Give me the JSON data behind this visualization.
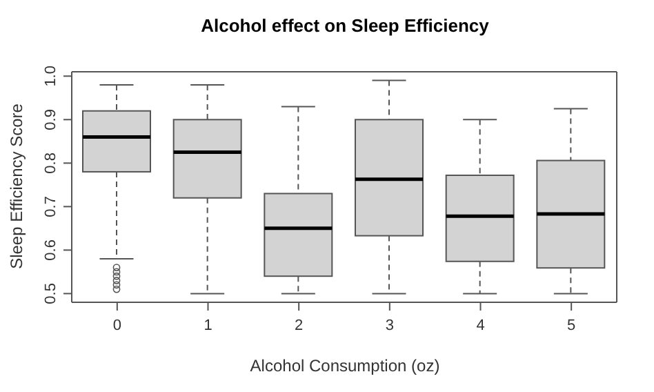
{
  "chart_data": {
    "type": "box",
    "title": "Alcohol effect on Sleep Efficiency",
    "xlabel": "Alcohol Consumption (oz)",
    "ylabel": "Sleep Efficiency Score",
    "categories": [
      "0",
      "1",
      "2",
      "3",
      "4",
      "5"
    ],
    "boxes": [
      {
        "low": 0.58,
        "q1": 0.78,
        "median": 0.86,
        "q3": 0.92,
        "high": 0.98,
        "outliers": [
          0.51,
          0.52,
          0.53,
          0.54,
          0.55,
          0.56
        ]
      },
      {
        "low": 0.5,
        "q1": 0.72,
        "median": 0.825,
        "q3": 0.9,
        "high": 0.98
      },
      {
        "low": 0.5,
        "q1": 0.54,
        "median": 0.65,
        "q3": 0.73,
        "high": 0.93
      },
      {
        "low": 0.5,
        "q1": 0.633,
        "median": 0.763,
        "q3": 0.9,
        "high": 0.99
      },
      {
        "low": 0.5,
        "q1": 0.574,
        "median": 0.678,
        "q3": 0.772,
        "high": 0.9
      },
      {
        "low": 0.5,
        "q1": 0.559,
        "median": 0.683,
        "q3": 0.806,
        "high": 0.925
      }
    ],
    "color": "#d3d3d3",
    "ylim": [
      0.48,
      1.01
    ],
    "yticks": [
      0.5,
      0.6,
      0.7,
      0.8,
      0.9,
      {
        "value": 1,
        "label": "1.0"
      }
    ],
    "grid": false
  }
}
